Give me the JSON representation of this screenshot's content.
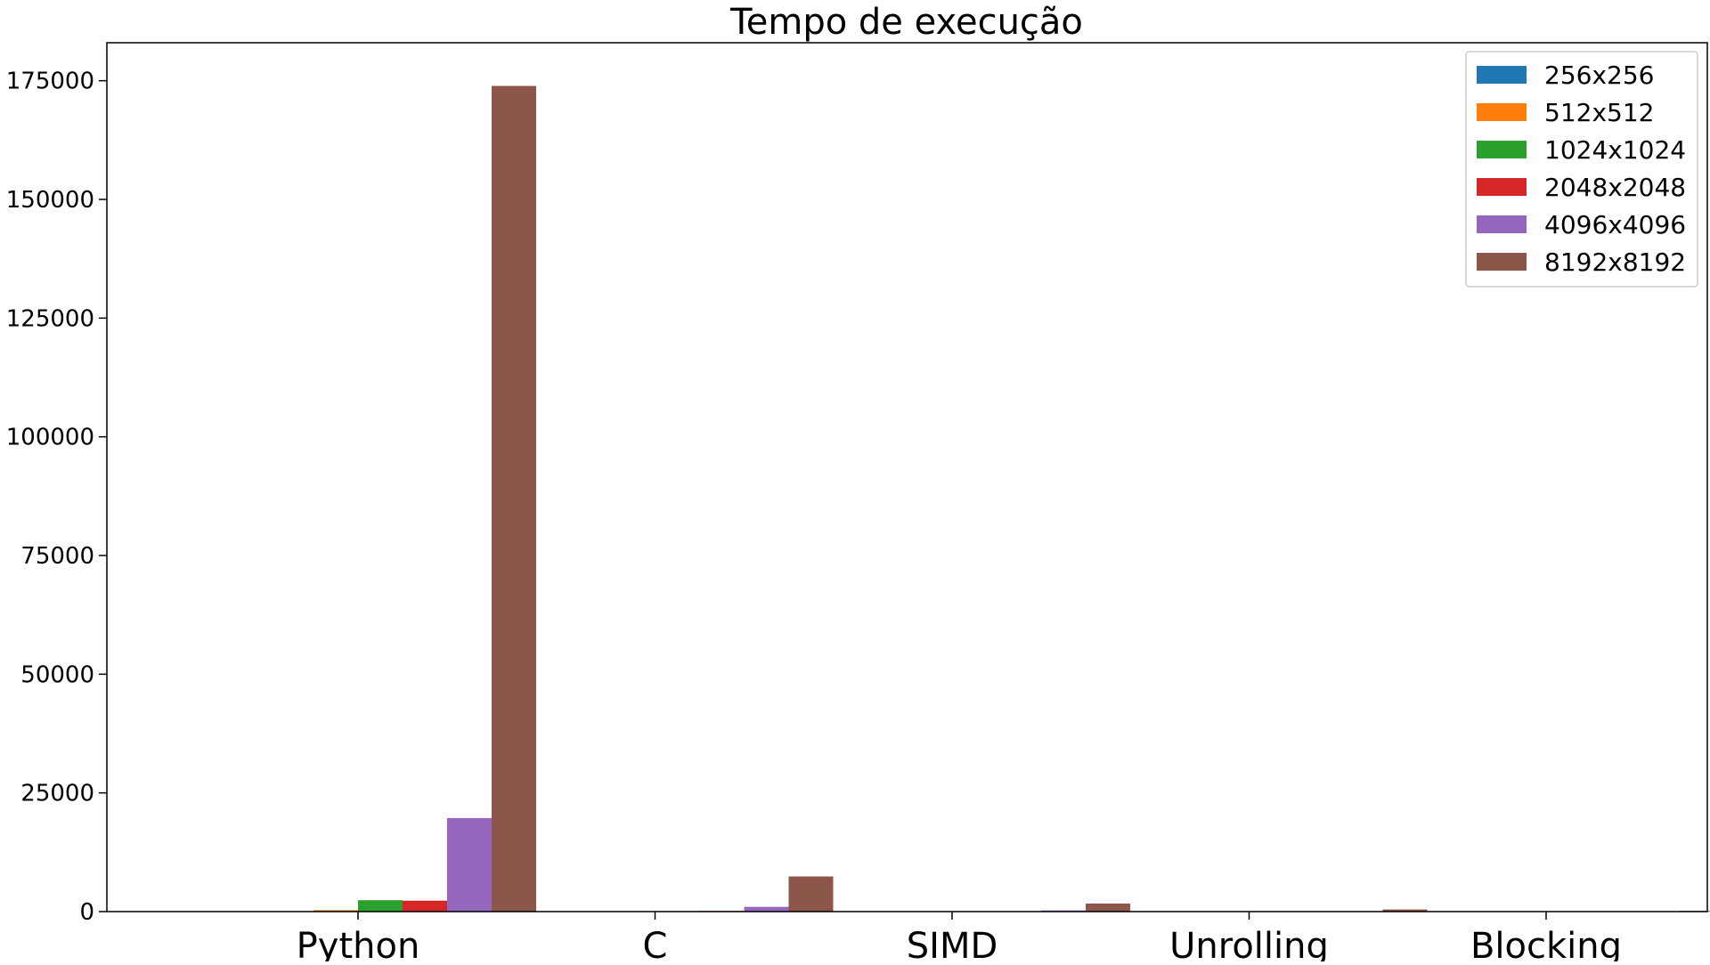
{
  "chart_data": {
    "type": "bar",
    "title": "Tempo de execução",
    "xlabel": "",
    "ylabel": "",
    "categories": [
      "Python",
      "C",
      "SIMD",
      "Unrolling",
      "Blocking"
    ],
    "series": [
      {
        "name": "256x256",
        "color": "#1f77b4",
        "values": [
          40,
          5,
          1,
          1,
          1
        ]
      },
      {
        "name": "512x512",
        "color": "#ff7f0e",
        "values": [
          300,
          15,
          3,
          2,
          2
        ]
      },
      {
        "name": "1024x1024",
        "color": "#2ca02c",
        "values": [
          2400,
          110,
          25,
          10,
          8
        ]
      },
      {
        "name": "2048x2048",
        "color": "#d62728",
        "values": [
          2300,
          140,
          30,
          12,
          8
        ]
      },
      {
        "name": "4096x4096",
        "color": "#9467bd",
        "values": [
          19700,
          1000,
          250,
          70,
          25
        ]
      },
      {
        "name": "8192x8192",
        "color": "#8c564b",
        "values": [
          173900,
          7400,
          1700,
          450,
          150
        ]
      }
    ],
    "yticks": [
      0,
      25000,
      50000,
      75000,
      100000,
      125000,
      150000,
      175000
    ],
    "ylim": [
      0,
      183000
    ],
    "legend_position": "upper right",
    "grid": false
  }
}
